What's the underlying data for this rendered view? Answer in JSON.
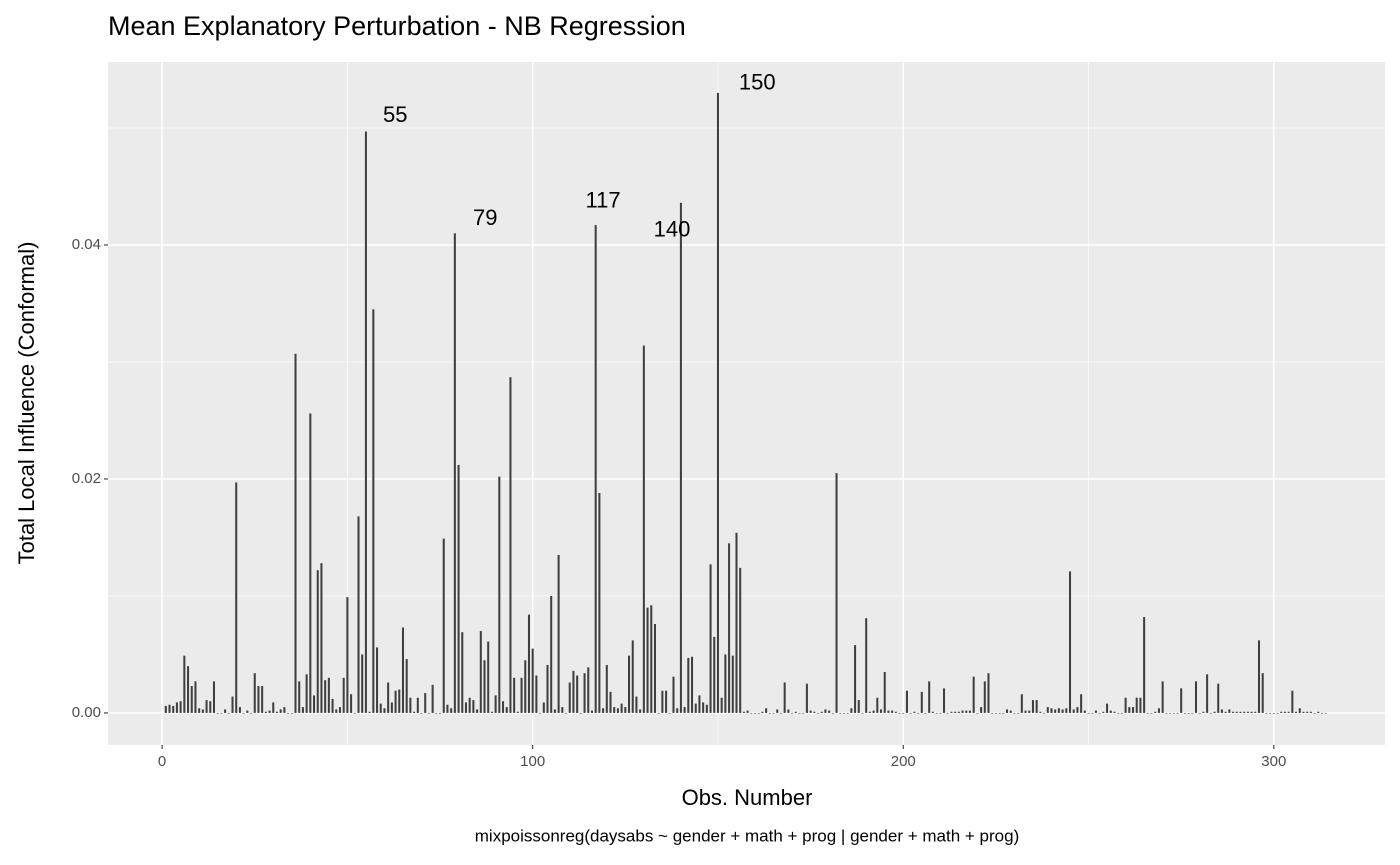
{
  "chart_data": {
    "type": "bar",
    "title": "Mean Explanatory Perturbation - NB Regression",
    "x_label": "Obs. Number",
    "y_label": "Total Local Influence (Conformal)",
    "caption": "mixpoissonreg(daysabs ~ gender + math + prog | gender + math + prog)",
    "color": "#3f3f3f",
    "grid": true,
    "xlim": [
      -14.6,
      330
    ],
    "ylim": [
      -0.00274,
      0.05564
    ],
    "xticks": [
      0,
      100,
      200,
      300
    ],
    "yticks": [
      {
        "value": 0,
        "label": "0.00"
      },
      {
        "value": 0.02,
        "label": "0.02"
      },
      {
        "value": 0.04,
        "label": "0.04"
      }
    ],
    "x_minor_breaks": [
      50,
      150,
      250
    ],
    "y_minor_breaks": [
      0.01,
      0.03,
      0.05
    ],
    "annotations": [
      {
        "x": 62.9,
        "y": 0.051,
        "label": "55"
      },
      {
        "x": 87.2,
        "y": 0.0422,
        "label": "79"
      },
      {
        "x": 119.0,
        "y": 0.0437,
        "label": "117"
      },
      {
        "x": 137.6,
        "y": 0.0412,
        "label": "140"
      },
      {
        "x": 160.6,
        "y": 0.0538,
        "label": "150"
      }
    ],
    "x": [
      1,
      2,
      3,
      4,
      5,
      6,
      7,
      8,
      9,
      10,
      11,
      12,
      13,
      14,
      15,
      16,
      17,
      18,
      19,
      20,
      21,
      22,
      23,
      24,
      25,
      26,
      27,
      28,
      29,
      30,
      31,
      32,
      33,
      34,
      35,
      36,
      37,
      38,
      39,
      40,
      41,
      42,
      43,
      44,
      45,
      46,
      47,
      48,
      49,
      50,
      51,
      52,
      53,
      54,
      55,
      56,
      57,
      58,
      59,
      60,
      61,
      62,
      63,
      64,
      65,
      66,
      67,
      68,
      69,
      70,
      71,
      72,
      73,
      74,
      75,
      76,
      77,
      78,
      79,
      80,
      81,
      82,
      83,
      84,
      85,
      86,
      87,
      88,
      89,
      90,
      91,
      92,
      93,
      94,
      95,
      96,
      97,
      98,
      99,
      100,
      101,
      102,
      103,
      104,
      105,
      106,
      107,
      108,
      109,
      110,
      111,
      112,
      113,
      114,
      115,
      116,
      117,
      118,
      119,
      120,
      121,
      122,
      123,
      124,
      125,
      126,
      127,
      128,
      129,
      130,
      131,
      132,
      133,
      134,
      135,
      136,
      137,
      138,
      139,
      140,
      141,
      142,
      143,
      144,
      145,
      146,
      147,
      148,
      149,
      150,
      151,
      152,
      153,
      154,
      155,
      156,
      157,
      158,
      159,
      160,
      161,
      162,
      163,
      164,
      165,
      166,
      167,
      168,
      169,
      170,
      171,
      172,
      173,
      174,
      175,
      176,
      177,
      178,
      179,
      180,
      181,
      182,
      183,
      184,
      185,
      186,
      187,
      188,
      189,
      190,
      191,
      192,
      193,
      194,
      195,
      196,
      197,
      198,
      199,
      200,
      201,
      202,
      203,
      204,
      205,
      206,
      207,
      208,
      209,
      210,
      211,
      212,
      213,
      214,
      215,
      216,
      217,
      218,
      219,
      220,
      221,
      222,
      223,
      224,
      225,
      226,
      227,
      228,
      229,
      230,
      231,
      232,
      233,
      234,
      235,
      236,
      237,
      238,
      239,
      240,
      241,
      242,
      243,
      244,
      245,
      246,
      247,
      248,
      249,
      250,
      251,
      252,
      253,
      254,
      255,
      256,
      257,
      258,
      259,
      260,
      261,
      262,
      263,
      264,
      265,
      266,
      267,
      268,
      269,
      270,
      271,
      272,
      273,
      274,
      275,
      276,
      277,
      278,
      279,
      280,
      281,
      282,
      283,
      284,
      285,
      286,
      287,
      288,
      289,
      290,
      291,
      292,
      293,
      294,
      295,
      296,
      297,
      298,
      299,
      300,
      301,
      302,
      303,
      304,
      305,
      306,
      307,
      308,
      309,
      310,
      311,
      312,
      313,
      314
    ],
    "values": [
      0.0006,
      0.0007,
      0.0006,
      0.0009,
      0.001,
      0.0049,
      0.004,
      0.0023,
      0.0027,
      0.0004,
      0.0003,
      0.0011,
      0.001,
      0.0027,
      0,
      0,
      0.0003,
      0,
      0.0014,
      0.0197,
      0.0005,
      0,
      0.0002,
      0,
      0.0034,
      0.0023,
      0.0023,
      0.0001,
      0.0002,
      0.0009,
      0.0001,
      0.0003,
      0.0005,
      0,
      0,
      0.0307,
      0.0027,
      0.0005,
      0.0033,
      0.0256,
      0.0015,
      0.0122,
      0.0128,
      0.0028,
      0.003,
      0.0012,
      0.0003,
      0.0005,
      0.003,
      0.0099,
      0.0016,
      0,
      0.0168,
      0.005,
      0.0497,
      0.0001,
      0.0345,
      0.0056,
      0.0008,
      0.0004,
      0.0026,
      0.0009,
      0.0019,
      0.002,
      0.0073,
      0.0046,
      0.0013,
      0.0001,
      0.0013,
      0,
      0.0017,
      0,
      0.0024,
      0,
      0,
      0.0149,
      0.0007,
      0.0004,
      0.041,
      0.0212,
      0.0069,
      0.0009,
      0.0013,
      0.0011,
      0.0003,
      0.007,
      0.0045,
      0.0061,
      0.0001,
      0.0015,
      0.0202,
      0.001,
      0.0005,
      0.0287,
      0.003,
      0.0001,
      0.003,
      0.0045,
      0.0084,
      0.0055,
      0.0032,
      0,
      0.0009,
      0.0041,
      0.01,
      0.0003,
      0.0135,
      0.0005,
      0,
      0.0026,
      0.0036,
      0.0032,
      0,
      0.0034,
      0.0039,
      0.0002,
      0.0417,
      0.0188,
      0.0004,
      0.0041,
      0.0018,
      0.0005,
      0.0004,
      0.0008,
      0.0005,
      0.0049,
      0.0062,
      0.0014,
      0.0003,
      0.0314,
      0.009,
      0.0092,
      0.0076,
      0,
      0.0019,
      0.0019,
      0,
      0.0031,
      0.0004,
      0.0436,
      0.0005,
      0.0047,
      0.0048,
      0.0008,
      0.0015,
      0.0009,
      0.0007,
      0.0127,
      0.0065,
      0.053,
      0.0013,
      0.005,
      0.0145,
      0.0049,
      0.0154,
      0.0124,
      0.0001,
      0.0002,
      0,
      0,
      0,
      0.0001,
      0.0004,
      0,
      0,
      0.0003,
      0,
      0.0026,
      0.0003,
      0,
      0.0001,
      0,
      0,
      0.0025,
      0.0002,
      0.0001,
      0,
      0.0001,
      0.0003,
      0.0002,
      0,
      0.0205,
      0,
      0,
      0,
      0.0004,
      0.0058,
      0.0011,
      0,
      0.0081,
      0.0001,
      0.0002,
      0.0013,
      0.0003,
      0.0035,
      0.0002,
      0.0002,
      0.0001,
      0,
      0,
      0.0019,
      0,
      0.0001,
      0,
      0.0018,
      0,
      0.0027,
      0.0001,
      0,
      0,
      0.0021,
      0,
      0.0001,
      0.0001,
      0.0001,
      0.0002,
      0.0002,
      0.0002,
      0.0031,
      0,
      0.0005,
      0.0027,
      0.0034,
      0,
      0,
      0,
      0,
      0.0003,
      0.0002,
      0,
      0,
      0.0016,
      0.0002,
      0.0002,
      0.0011,
      0.0011,
      0.0001,
      0,
      0.0005,
      0.0004,
      0.0003,
      0.0004,
      0.0003,
      0.0004,
      0.0121,
      0.0003,
      0.0005,
      0.0016,
      0.0002,
      0,
      0,
      0.0002,
      0,
      0.0001,
      0.0008,
      0.0002,
      0.0001,
      0,
      0,
      0.0013,
      0.0005,
      0.0005,
      0.0013,
      0.0013,
      0.0082,
      0,
      0,
      0.0001,
      0.0004,
      0.0027,
      0,
      0,
      0,
      0,
      0.0021,
      0,
      0,
      0,
      0.0027,
      0,
      0.0001,
      0.0033,
      0,
      0.0001,
      0.0025,
      0.0003,
      0.0001,
      0.0003,
      0.0001,
      0.0001,
      0.0001,
      0.0001,
      0.0001,
      0.0001,
      0.0001,
      0.0062,
      0.0034,
      0,
      0,
      0,
      0,
      0.0001,
      0.0001,
      0.0001,
      0.0019,
      0.0001,
      0.0004,
      0.0001,
      0.0001,
      0.0001,
      0,
      0.0001,
      0,
      0
    ]
  }
}
